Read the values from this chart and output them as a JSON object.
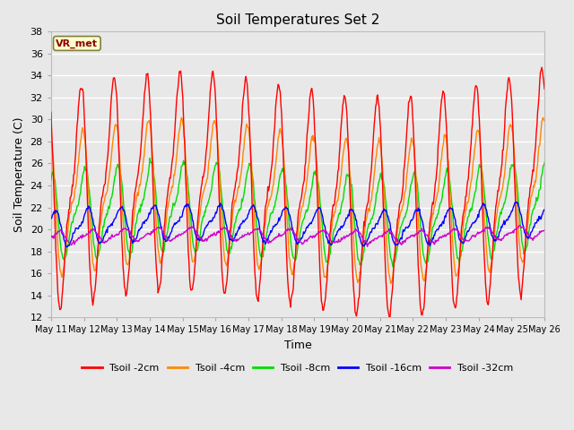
{
  "title": "Soil Temperatures Set 2",
  "xlabel": "Time",
  "ylabel": "Soil Temperature (C)",
  "ylim": [
    12,
    38
  ],
  "yticks": [
    12,
    14,
    16,
    18,
    20,
    22,
    24,
    26,
    28,
    30,
    32,
    34,
    36,
    38
  ],
  "plot_bg_color": "#e8e8e8",
  "grid_color": "#ffffff",
  "annotation_text": "VR_met",
  "annotation_bg": "#ffffcc",
  "annotation_border": "#808040",
  "annotation_text_color": "#8b0000",
  "legend_labels": [
    "Tsoil -2cm",
    "Tsoil -4cm",
    "Tsoil -8cm",
    "Tsoil -16cm",
    "Tsoil -32cm"
  ],
  "line_colors": [
    "#ff0000",
    "#ff8800",
    "#00dd00",
    "#0000ff",
    "#cc00cc"
  ],
  "x_tick_labels": [
    "May 11",
    "May 12",
    "May 13",
    "May 14",
    "May 15",
    "May 16",
    "May 17",
    "May 18",
    "May 19",
    "May 20",
    "May 21",
    "May 22",
    "May 23",
    "May 24",
    "May 25",
    "May 26"
  ],
  "n_days": 15,
  "pts_per_day": 48
}
